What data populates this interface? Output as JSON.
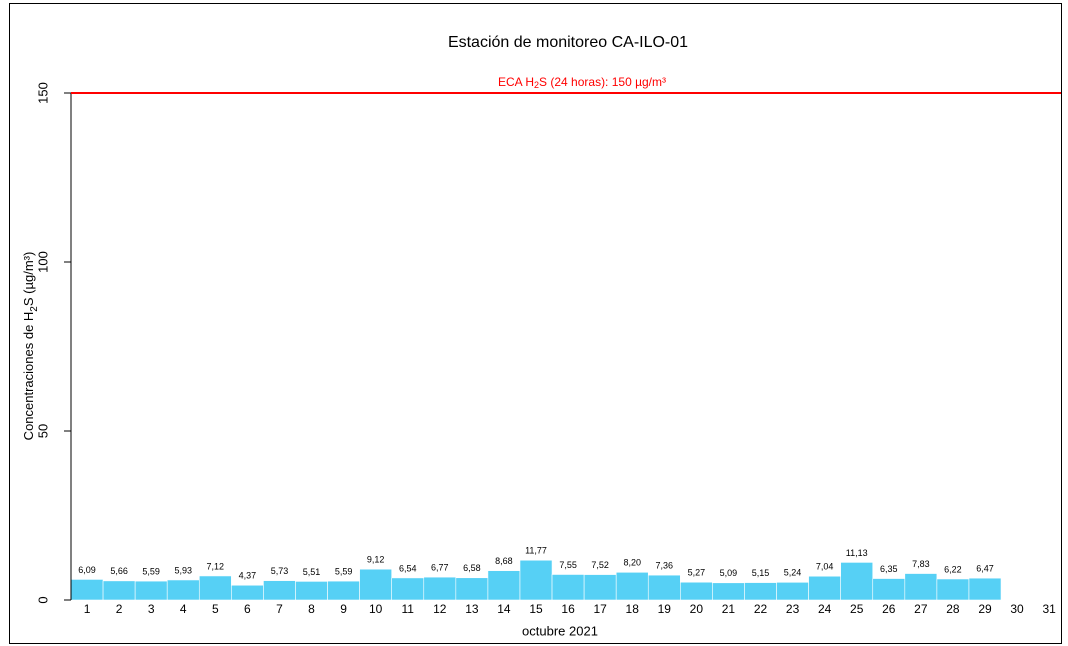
{
  "chart_data": {
    "type": "bar",
    "title": "Estación de monitoreo  CA-ILO-01",
    "x_label": "octubre 2021",
    "y_label_parts": [
      "Concentraciones de H",
      "2",
      "S (µg/m³)"
    ],
    "categories": [
      "1",
      "2",
      "3",
      "4",
      "5",
      "6",
      "7",
      "8",
      "9",
      "10",
      "11",
      "12",
      "13",
      "14",
      "15",
      "16",
      "17",
      "18",
      "19",
      "20",
      "21",
      "22",
      "23",
      "24",
      "25",
      "26",
      "27",
      "28",
      "29",
      "30",
      "31"
    ],
    "values": [
      6.09,
      5.66,
      5.59,
      5.93,
      7.12,
      4.37,
      5.73,
      5.51,
      5.59,
      9.12,
      6.54,
      6.77,
      6.58,
      8.68,
      11.77,
      7.55,
      7.52,
      8.2,
      7.36,
      5.27,
      5.09,
      5.15,
      5.24,
      7.04,
      11.13,
      6.35,
      7.83,
      6.22,
      6.47,
      null,
      null
    ],
    "value_labels": [
      "6,09",
      "5,66",
      "5,59",
      "5,93",
      "7,12",
      "4,37",
      "5,73",
      "5,51",
      "5,59",
      "9,12",
      "6,54",
      "6,77",
      "6,58",
      "8,68",
      "11,77",
      "7,55",
      "7,52",
      "8,20",
      "7,36",
      "5,27",
      "5,09",
      "5,15",
      "5,24",
      "7,04",
      "11,13",
      "6,35",
      "7,83",
      "6,22",
      "6,47",
      null,
      null
    ],
    "color": "#56d0f5",
    "ylim": [
      0,
      150
    ],
    "yticks": [
      0,
      50,
      100,
      150
    ],
    "reference_line": {
      "value": 150,
      "color": "#ff0000",
      "label_parts": [
        "ECA H",
        "2",
        "S (24 horas): 150 µg/m³"
      ]
    }
  }
}
